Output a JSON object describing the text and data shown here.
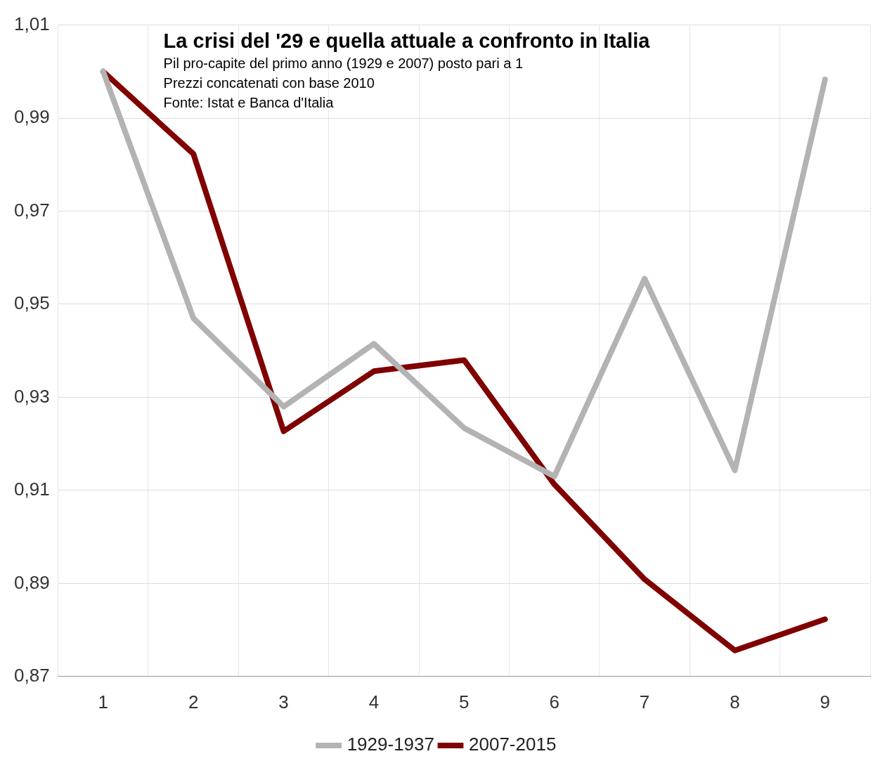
{
  "chart_data": {
    "type": "line",
    "title": "La crisi del '29 e quella attuale a confronto in Italia",
    "subtitle": "Pil pro-capite del primo anno (1929 e 2007) posto pari a 1",
    "annotations": [
      "Prezzi concatenati con base 2010",
      "Fonte: Istat e Banca d'Italia"
    ],
    "categories": [
      "1",
      "2",
      "3",
      "4",
      "5",
      "6",
      "7",
      "8",
      "9"
    ],
    "series": [
      {
        "name": "1929-1937",
        "color": "#b3b3b3",
        "values": [
          1.0,
          0.947,
          0.928,
          0.9415,
          0.9234,
          0.913,
          0.9555,
          0.9143,
          0.9983
        ]
      },
      {
        "name": "2007-2015",
        "color": "#7f0000",
        "values": [
          1.0,
          0.9823,
          0.9227,
          0.9356,
          0.938,
          0.9113,
          0.8909,
          0.8756,
          0.8823
        ]
      }
    ],
    "ylim": [
      0.87,
      1.01
    ],
    "yticks": [
      {
        "value": 0.87,
        "label": "0,87"
      },
      {
        "value": 0.89,
        "label": "0,89"
      },
      {
        "value": 0.91,
        "label": "0,91"
      },
      {
        "value": 0.93,
        "label": "0,93"
      },
      {
        "value": 0.95,
        "label": "0,95"
      },
      {
        "value": 0.97,
        "label": "0,97"
      },
      {
        "value": 0.99,
        "label": "0,99"
      },
      {
        "value": 1.01,
        "label": "1,01"
      }
    ],
    "grid": true,
    "legend": "bottom",
    "marker": "none",
    "line_style": "solid"
  }
}
